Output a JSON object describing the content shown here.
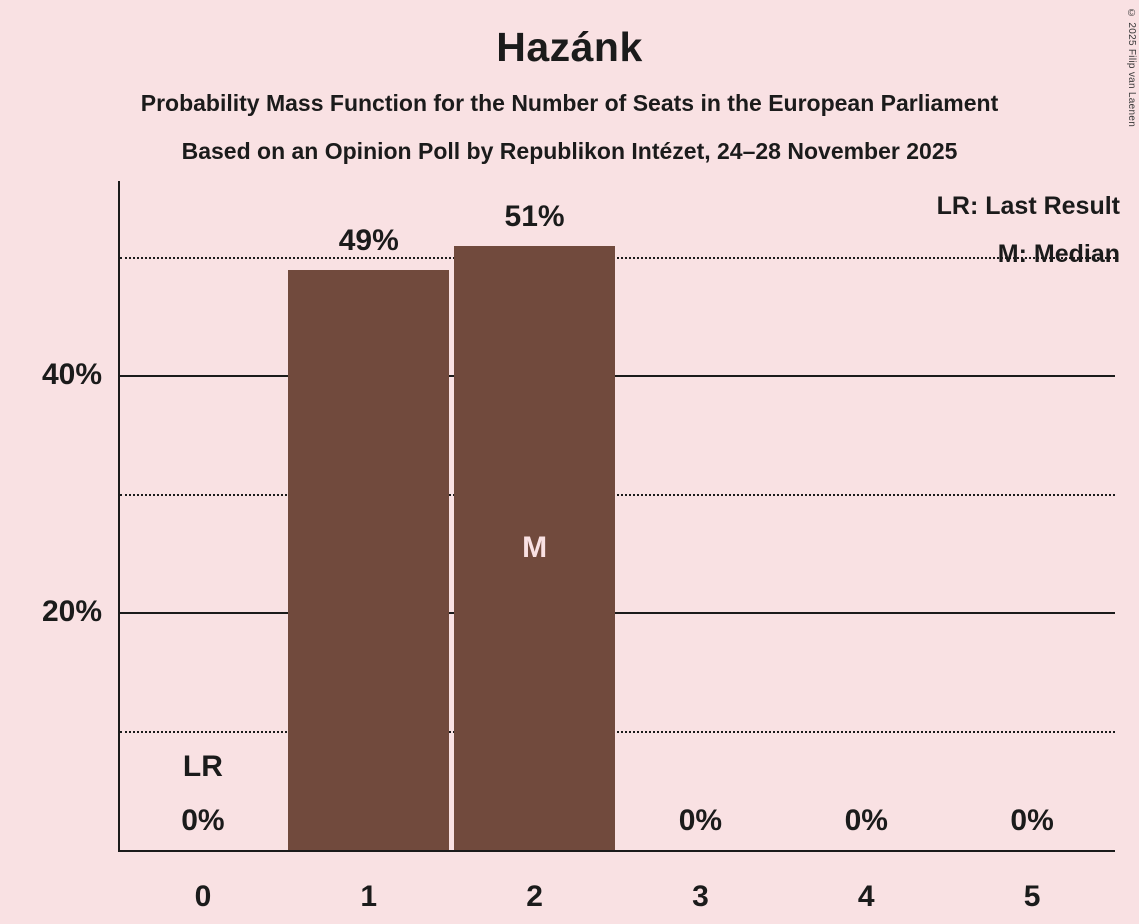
{
  "page": {
    "background": "#f9e1e3",
    "copyright": "© 2025 Filip van Laenen"
  },
  "header": {
    "title": "Hazánk",
    "subtitle1": "Probability Mass Function for the Number of Seats in the European Parliament",
    "subtitle2": "Based on an Opinion Poll by Republikon Intézet, 24–28 November 2025"
  },
  "legend": {
    "lr": "LR: Last Result",
    "m": "M: Median"
  },
  "chart_data": {
    "type": "bar",
    "title": "Hazánk",
    "xlabel": "",
    "ylabel": "",
    "categories": [
      "0",
      "1",
      "2",
      "3",
      "4",
      "5"
    ],
    "values": [
      0,
      49,
      51,
      0,
      0,
      0
    ],
    "value_labels": [
      "0%",
      "49%",
      "51%",
      "0%",
      "0%",
      "0%"
    ],
    "ylim": [
      0,
      56.5
    ],
    "gridlines": [
      {
        "value": 10,
        "style": "dotted",
        "label": ""
      },
      {
        "value": 20,
        "style": "solid",
        "label": "20%"
      },
      {
        "value": 30,
        "style": "dotted",
        "label": ""
      },
      {
        "value": 40,
        "style": "solid",
        "label": "40%"
      },
      {
        "value": 50,
        "style": "dotted",
        "label": ""
      }
    ],
    "annotations": {
      "last_result_seat": "0",
      "last_result_label": "LR",
      "median_seat": "2",
      "median_label": "M"
    },
    "colors": {
      "bar": "#714a3d",
      "median_text": "#f9e1e3",
      "text": "#1b1b1b"
    },
    "legend_position": "top-right",
    "grid": "horizontal-only"
  }
}
